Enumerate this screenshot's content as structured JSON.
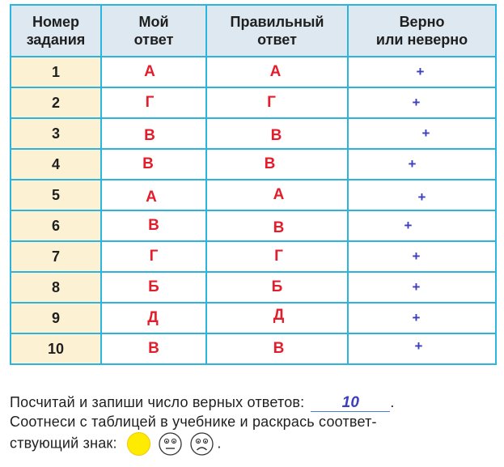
{
  "table": {
    "headers": {
      "task_number": [
        "Номер",
        "задания"
      ],
      "my_answer": [
        "Мой",
        "ответ"
      ],
      "correct_answer": [
        "Правильный",
        "ответ"
      ],
      "verdict": [
        "Верно",
        "или неверно"
      ]
    },
    "rows": [
      {
        "num": "1",
        "mine": "А",
        "correct": "А",
        "verdict": "+"
      },
      {
        "num": "2",
        "mine": "Г",
        "correct": "Г",
        "verdict": "+"
      },
      {
        "num": "3",
        "mine": "В",
        "correct": "В",
        "verdict": "+"
      },
      {
        "num": "4",
        "mine": "В",
        "correct": "В",
        "verdict": "+"
      },
      {
        "num": "5",
        "mine": "А",
        "correct": "А",
        "verdict": "+"
      },
      {
        "num": "6",
        "mine": "В",
        "correct": "В",
        "verdict": "+"
      },
      {
        "num": "7",
        "mine": "Г",
        "correct": "Г",
        "verdict": "+"
      },
      {
        "num": "8",
        "mine": "Б",
        "correct": "Б",
        "verdict": "+"
      },
      {
        "num": "9",
        "mine": "Д",
        "correct": "Д",
        "verdict": "+"
      },
      {
        "num": "10",
        "mine": "В",
        "correct": "В",
        "verdict": "+"
      }
    ]
  },
  "task": {
    "line1": "Посчитай и запиши число верных ответов:",
    "answer": "10",
    "line1_end": ".",
    "line2": "Соотнеси с таблицей в учебнике и раскрась соответ-",
    "line3": "ствующий знак:",
    "line3_end": ".",
    "faces": [
      {
        "icon": "smiley-happy-icon",
        "fill": "#ffeb00"
      },
      {
        "icon": "smiley-neutral-icon",
        "fill": "#ffffff"
      },
      {
        "icon": "smiley-sad-icon",
        "fill": "#ffffff"
      }
    ]
  },
  "colors": {
    "grid": "#2bb4de",
    "header_bg": "#dde8f1",
    "number_bg": "#fcf2d3",
    "letter": "#e31d2b",
    "mark": "#3b3fbd"
  }
}
